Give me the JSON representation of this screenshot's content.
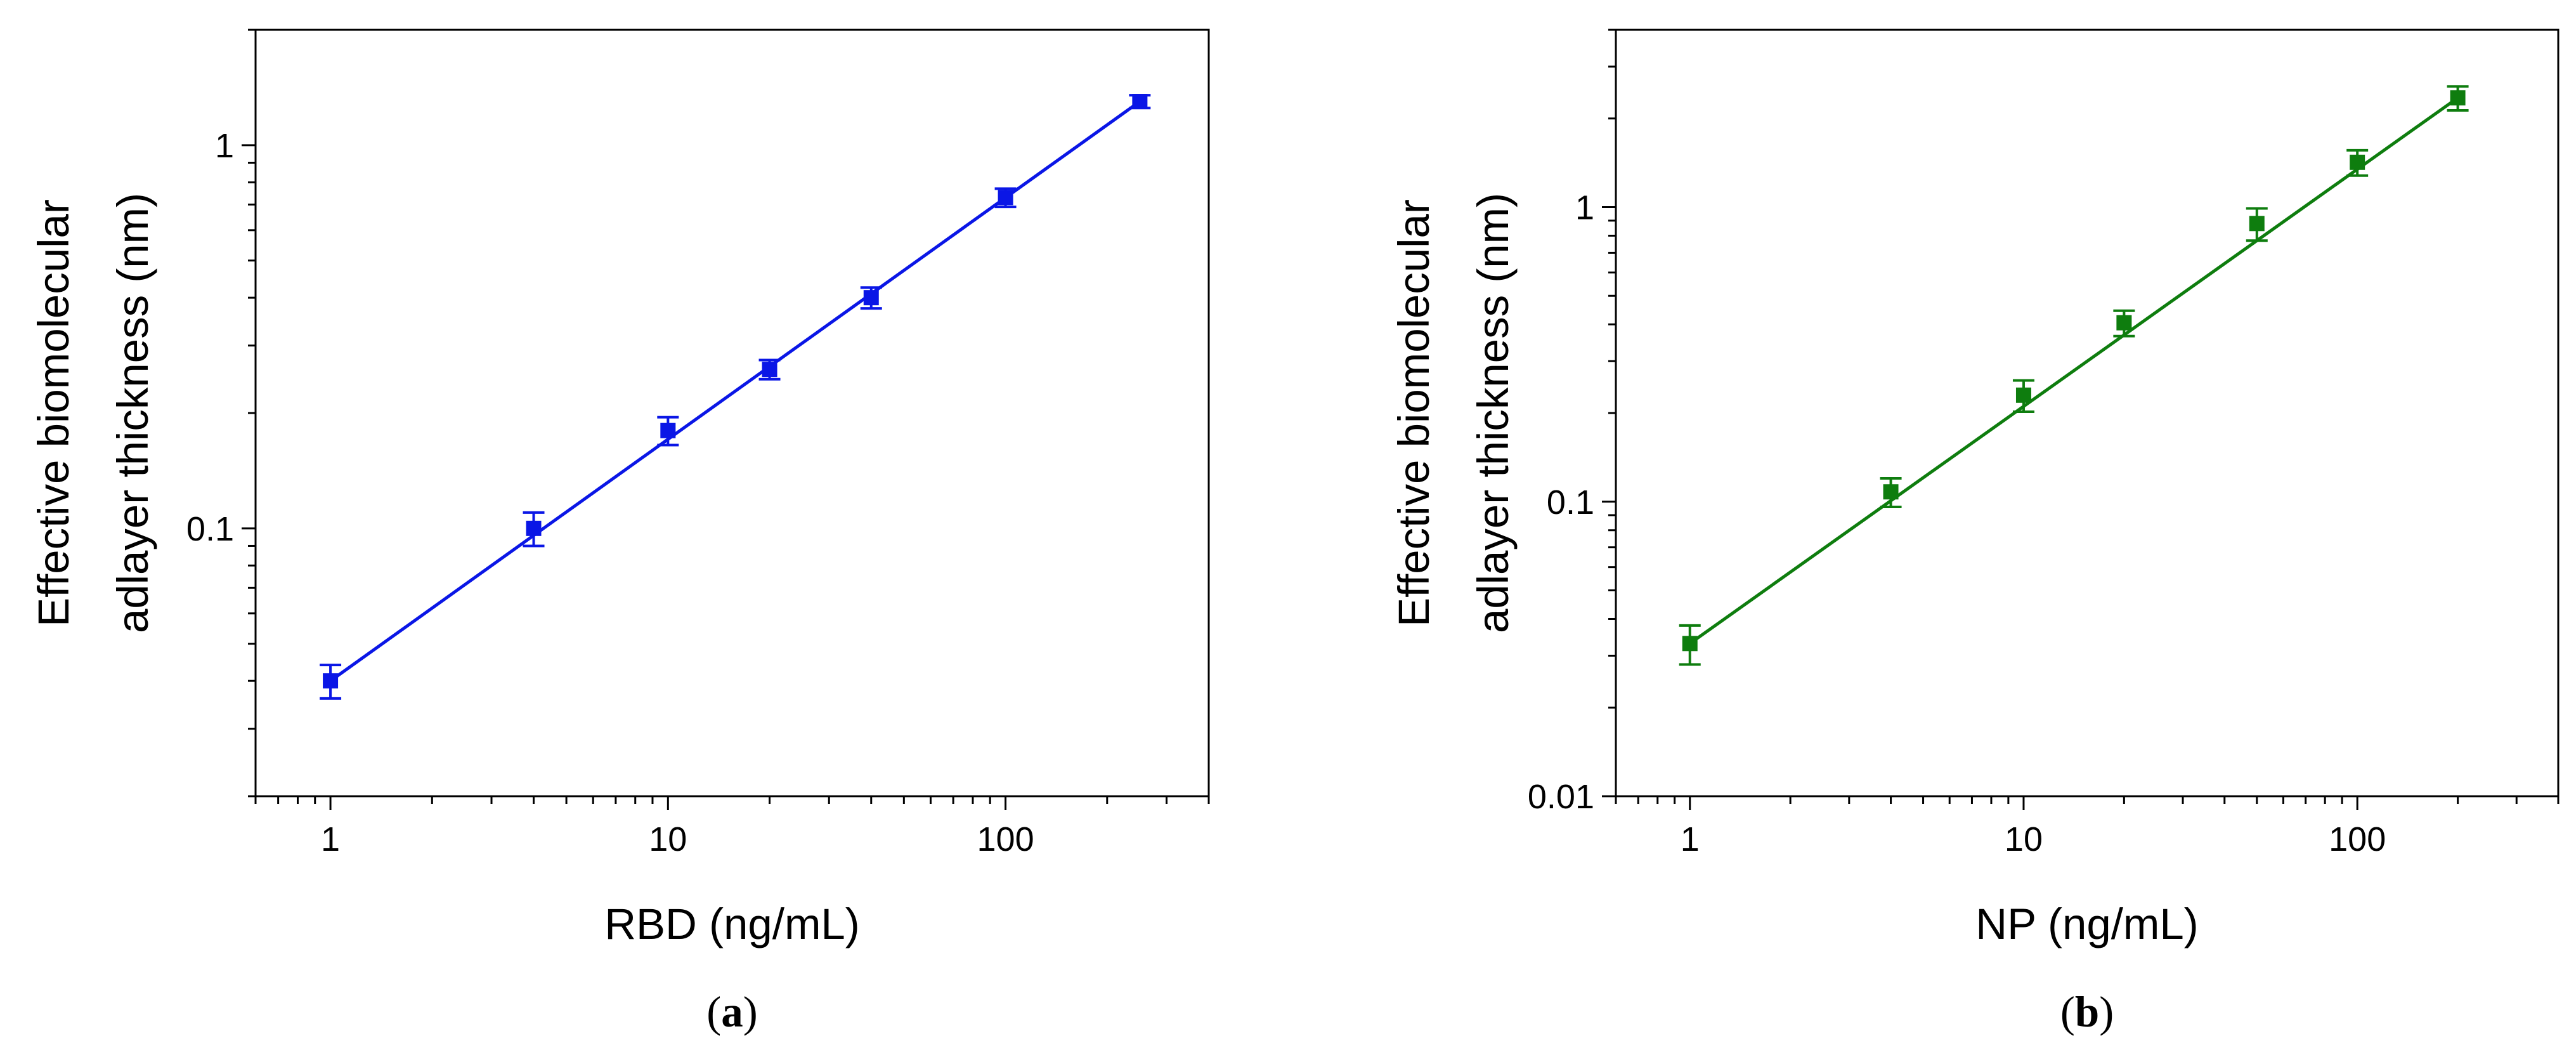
{
  "chart_data": [
    {
      "type": "scatter",
      "panel_label": {
        "open": "(",
        "letter": "a",
        "close": ")"
      },
      "xlabel": "RBD (ng/mL)",
      "ylabel_lines": [
        "Effective biomolecular",
        "adlayer thickness (nm)"
      ],
      "xscale": "log",
      "yscale": "log",
      "xlim": [
        0.6,
        400
      ],
      "ylim": [
        0.02,
        2.0
      ],
      "x_major_ticks": [
        1,
        10,
        100
      ],
      "x_tick_labels": [
        "1",
        "10",
        "100"
      ],
      "y_major_ticks": [
        0.1,
        1
      ],
      "y_tick_labels": [
        "0.1",
        "1"
      ],
      "color": "#0a16e6",
      "series": [
        {
          "name": "RBD",
          "x": [
            1,
            4,
            10,
            20,
            40,
            100,
            250
          ],
          "y": [
            0.04,
            0.1,
            0.18,
            0.26,
            0.4,
            0.73,
            1.3
          ],
          "err": [
            0.004,
            0.01,
            0.015,
            0.015,
            0.025,
            0.04,
            0.05
          ]
        }
      ],
      "fit_line": {
        "x": [
          1,
          250
        ],
        "y": [
          0.04,
          1.3
        ]
      }
    },
    {
      "type": "scatter",
      "panel_label": {
        "open": "(",
        "letter": "b",
        "close": ")"
      },
      "xlabel": "NP (ng/mL)",
      "ylabel_lines": [
        "Effective biomolecular",
        "adlayer thickness (nm)"
      ],
      "xscale": "log",
      "yscale": "log",
      "xlim": [
        0.6,
        400
      ],
      "ylim": [
        0.01,
        4.0
      ],
      "x_major_ticks": [
        1,
        10,
        100
      ],
      "x_tick_labels": [
        "1",
        "10",
        "100"
      ],
      "y_major_ticks": [
        0.01,
        0.1,
        1
      ],
      "y_tick_labels": [
        "0.01",
        "0.1",
        "1"
      ],
      "color": "#0e7d0e",
      "series": [
        {
          "name": "NP",
          "x": [
            1,
            4,
            10,
            20,
            50,
            100,
            200
          ],
          "y": [
            0.033,
            0.108,
            0.23,
            0.405,
            0.88,
            1.42,
            2.35
          ],
          "err": [
            0.005,
            0.012,
            0.028,
            0.04,
            0.11,
            0.14,
            0.22
          ]
        }
      ],
      "fit_line": {
        "x": [
          1,
          200
        ],
        "y": [
          0.033,
          2.35
        ]
      }
    }
  ]
}
